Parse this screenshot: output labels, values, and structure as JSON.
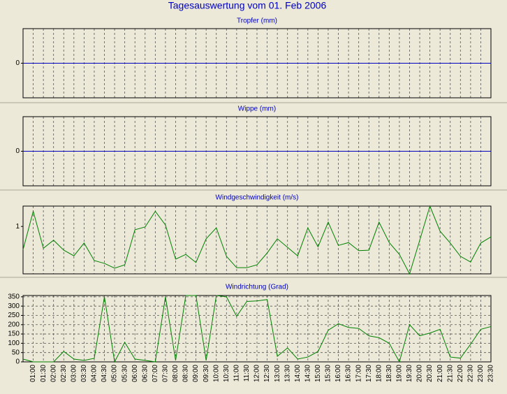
{
  "title": "Tagesauswertung vom 01. Feb 2006",
  "chart_data": [
    {
      "type": "line",
      "title": "Tropfer (mm)",
      "color": "#0000c0",
      "values": [
        0,
        0,
        0,
        0,
        0,
        0,
        0,
        0,
        0,
        0,
        0,
        0,
        0,
        0,
        0,
        0,
        0,
        0,
        0,
        0,
        0,
        0,
        0,
        0,
        0,
        0,
        0,
        0,
        0,
        0,
        0,
        0,
        0,
        0,
        0,
        0,
        0,
        0,
        0,
        0,
        0,
        0,
        0,
        0,
        0,
        0,
        0
      ],
      "ylim": [
        -1,
        1
      ],
      "yticks": [
        0
      ],
      "grid": true
    },
    {
      "type": "line",
      "title": "Wippe (mm)",
      "color": "#0000c0",
      "values": [
        0,
        0,
        0,
        0,
        0,
        0,
        0,
        0,
        0,
        0,
        0,
        0,
        0,
        0,
        0,
        0,
        0,
        0,
        0,
        0,
        0,
        0,
        0,
        0,
        0,
        0,
        0,
        0,
        0,
        0,
        0,
        0,
        0,
        0,
        0,
        0,
        0,
        0,
        0,
        0,
        0,
        0,
        0,
        0,
        0,
        0,
        0
      ],
      "ylim": [
        -1,
        1
      ],
      "yticks": [
        0
      ],
      "grid": true
    },
    {
      "type": "line",
      "title": "Windgeschwindigkeit (m/s)",
      "color": "#008000",
      "values": [
        0.51,
        1.32,
        0.54,
        0.71,
        0.5,
        0.38,
        0.65,
        0.28,
        0.22,
        0.12,
        0.19,
        0.93,
        0.99,
        1.32,
        1.03,
        0.31,
        0.41,
        0.24,
        0.74,
        0.97,
        0.37,
        0.13,
        0.13,
        0.19,
        0.44,
        0.74,
        0.56,
        0.38,
        0.97,
        0.57,
        1.09,
        0.6,
        0.66,
        0.49,
        0.5,
        1.09,
        0.66,
        0.41,
        0,
        0.71,
        1.43,
        0.9,
        0.65,
        0.37,
        0.25,
        0.65,
        0.78
      ],
      "ylim": [
        0,
        1.43
      ],
      "yticks": [
        1
      ],
      "grid": true
    },
    {
      "type": "line",
      "title": "Windrichtung (Grad)",
      "color": "#008000",
      "categories": [
        null,
        "01:00",
        "01:30",
        "02:00",
        "02:30",
        "03:00",
        "03:30",
        "04:00",
        "04:30",
        "05:00",
        "05:30",
        "06:00",
        "06:30",
        "07:00",
        "07:30",
        "08:00",
        "08:30",
        "09:00",
        "09:30",
        "10:00",
        "10:30",
        "11:00",
        "11:30",
        "12:00",
        "12:30",
        "13:00",
        "13:30",
        "14:00",
        "14:30",
        "15:00",
        "15:30",
        "16:00",
        "16:30",
        "17:00",
        "17:30",
        "18:00",
        "18:30",
        "19:00",
        "19:30",
        "20:00",
        "20:30",
        "21:00",
        "21:30",
        "22:00",
        "22:30",
        "23:00",
        "23:30"
      ],
      "values": [
        15,
        0,
        0,
        0,
        56,
        15,
        8,
        19,
        350,
        0,
        105,
        15,
        8,
        0,
        350,
        8,
        357,
        357,
        8,
        357,
        350,
        245,
        325,
        328,
        335,
        30,
        75,
        15,
        26,
        56,
        170,
        205,
        185,
        180,
        140,
        130,
        100,
        0,
        200,
        140,
        155,
        175,
        26,
        20,
        95,
        175,
        190
      ],
      "ylim": [
        0,
        357
      ],
      "yticks": [
        0,
        50,
        100,
        150,
        200,
        250,
        300,
        350
      ],
      "grid": true
    }
  ]
}
